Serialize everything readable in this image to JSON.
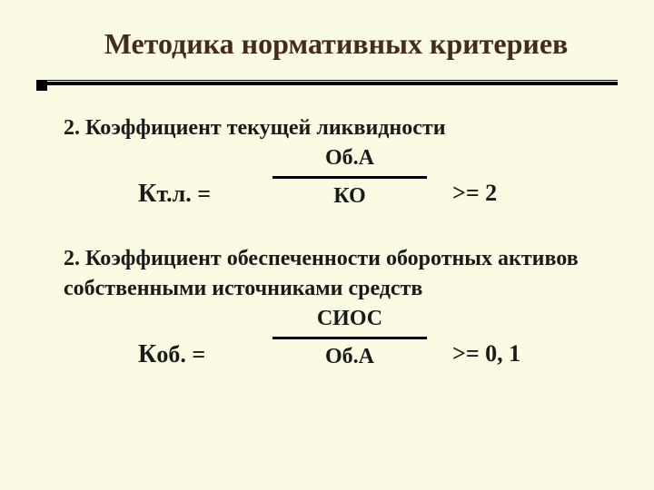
{
  "colors": {
    "background": "#fbfbe4",
    "title": "#442b1a",
    "text": "#1a1a1a",
    "rule": "#000000"
  },
  "title": "Методика нормативных критериев",
  "section1": {
    "heading": "2. Коэффициент текущей ликвидности",
    "lhs_big": "К",
    "lhs_sub": "т.л. =",
    "numerator": "Об.А",
    "denominator": "КО",
    "rhs": ">= 2"
  },
  "section2": {
    "heading": "2. Коэффициент обеспеченности оборотных активов собственными источниками средств",
    "lhs_big": "К",
    "lhs_sub": "об. =",
    "numerator": "СИОС",
    "denominator": "Об.А",
    "rhs": ">= 0, 1"
  }
}
